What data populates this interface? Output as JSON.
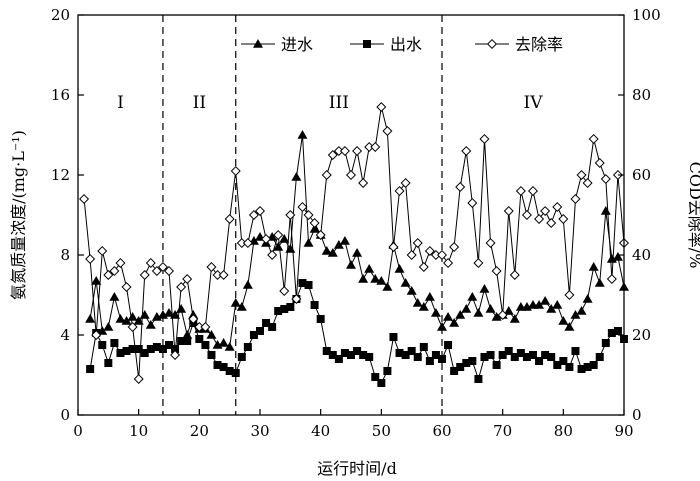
{
  "chart_data": {
    "type": "line",
    "xlabel": "运行时间/d",
    "ylabel": "氨氮质量浓度/(mg·L⁻¹)",
    "y2label": "COD去除率/%",
    "xlim": [
      0,
      90
    ],
    "ylim": [
      0,
      20
    ],
    "y2lim": [
      0,
      100
    ],
    "xticks": [
      0,
      10,
      20,
      30,
      40,
      50,
      60,
      70,
      80,
      90
    ],
    "yticks": [
      0,
      4,
      8,
      12,
      16,
      20
    ],
    "y2ticks": [
      0,
      20,
      40,
      60,
      80,
      100
    ],
    "grid": false,
    "legend": "top",
    "phase_boundaries": [
      14,
      26,
      60
    ],
    "phases": [
      {
        "label": "I",
        "x": 7
      },
      {
        "label": "II",
        "x": 20
      },
      {
        "label": "III",
        "x": 43
      },
      {
        "label": "IV",
        "x": 75
      }
    ],
    "series": [
      {
        "name": "进水",
        "axis": "left",
        "color": "#000000",
        "marker": "triangle",
        "x": [
          2,
          3,
          4,
          5,
          6,
          7,
          8,
          9,
          10,
          11,
          12,
          13,
          14,
          15,
          16,
          17,
          18,
          19,
          20,
          21,
          22,
          23,
          24,
          25,
          26,
          27,
          28,
          29,
          30,
          31,
          32,
          33,
          34,
          35,
          36,
          37,
          38,
          39,
          40,
          41,
          42,
          43,
          44,
          45,
          46,
          47,
          48,
          49,
          50,
          51,
          52,
          53,
          54,
          55,
          56,
          57,
          58,
          59,
          60,
          61,
          62,
          63,
          64,
          65,
          66,
          67,
          68,
          69,
          70,
          71,
          72,
          73,
          74,
          75,
          76,
          77,
          78,
          79,
          80,
          81,
          82,
          83,
          84,
          85,
          86,
          87,
          88,
          89,
          90
        ],
        "values": [
          4.8,
          6.7,
          4.2,
          4.4,
          5.9,
          4.8,
          4.7,
          4.9,
          4.7,
          5.0,
          4.5,
          4.9,
          5.0,
          5.1,
          5.0,
          5.3,
          4.0,
          5.0,
          4.3,
          4.3,
          4.0,
          3.5,
          3.6,
          3.4,
          5.6,
          5.4,
          6.5,
          8.7,
          8.9,
          8.6,
          8.9,
          8.4,
          8.8,
          8.3,
          11.9,
          14.0,
          8.6,
          9.3,
          9.0,
          8.2,
          8.1,
          8.5,
          8.7,
          7.5,
          8.1,
          6.8,
          7.3,
          6.8,
          6.7,
          6.4,
          8.5,
          7.3,
          6.6,
          6.2,
          5.6,
          5.4,
          5.9,
          5.1,
          4.4,
          4.9,
          4.6,
          5.0,
          5.3,
          5.9,
          5.1,
          6.3,
          5.3,
          4.9,
          5.0,
          5.2,
          4.8,
          5.4,
          5.4,
          5.5,
          5.5,
          5.7,
          5.3,
          5.5,
          4.7,
          4.4,
          5.0,
          5.2,
          5.8,
          7.4,
          6.6,
          10.2,
          7.8,
          7.9,
          6.4
        ]
      },
      {
        "name": "出水",
        "axis": "left",
        "color": "#000000",
        "marker": "square",
        "x": [
          2,
          3,
          4,
          5,
          6,
          7,
          8,
          9,
          10,
          11,
          12,
          13,
          14,
          15,
          16,
          17,
          18,
          19,
          20,
          21,
          22,
          23,
          24,
          25,
          26,
          27,
          28,
          29,
          30,
          31,
          32,
          33,
          34,
          35,
          36,
          37,
          38,
          39,
          40,
          41,
          42,
          43,
          44,
          45,
          46,
          47,
          48,
          49,
          50,
          51,
          52,
          53,
          54,
          55,
          56,
          57,
          58,
          59,
          60,
          61,
          62,
          63,
          64,
          65,
          66,
          67,
          68,
          69,
          70,
          71,
          72,
          73,
          74,
          75,
          76,
          77,
          78,
          79,
          80,
          81,
          82,
          83,
          84,
          85,
          86,
          87,
          88,
          89,
          90
        ],
        "values": [
          2.3,
          4.1,
          3.5,
          2.6,
          3.6,
          3.1,
          3.2,
          3.3,
          3.3,
          3.1,
          3.3,
          3.4,
          3.3,
          3.5,
          3.3,
          3.7,
          3.7,
          4.6,
          3.8,
          3.5,
          3.0,
          2.5,
          2.4,
          2.2,
          2.1,
          2.9,
          3.4,
          4.0,
          4.2,
          4.6,
          4.4,
          5.2,
          5.3,
          5.4,
          5.8,
          6.6,
          6.5,
          5.5,
          4.8,
          3.2,
          3.0,
          2.8,
          3.1,
          3.0,
          3.2,
          3.0,
          2.9,
          1.9,
          1.6,
          2.2,
          3.9,
          3.1,
          3.0,
          3.2,
          2.9,
          3.4,
          2.7,
          3.0,
          2.8,
          3.5,
          2.2,
          2.4,
          2.6,
          2.7,
          1.8,
          2.9,
          3.0,
          2.5,
          3.0,
          3.2,
          2.9,
          3.1,
          2.9,
          3.0,
          2.7,
          3.0,
          2.9,
          2.5,
          2.7,
          2.4,
          3.2,
          2.3,
          2.4,
          2.5,
          2.9,
          3.6,
          4.1,
          4.2,
          3.8
        ]
      },
      {
        "name": "去除率",
        "axis": "right",
        "color": "#000000",
        "marker": "diamond-open",
        "x": [
          1,
          2,
          3,
          4,
          5,
          6,
          7,
          8,
          9,
          10,
          11,
          12,
          13,
          14,
          15,
          16,
          17,
          18,
          19,
          20,
          21,
          22,
          23,
          24,
          25,
          26,
          27,
          28,
          29,
          30,
          31,
          32,
          33,
          34,
          35,
          36,
          37,
          38,
          39,
          40,
          41,
          42,
          43,
          44,
          45,
          46,
          47,
          48,
          49,
          50,
          51,
          52,
          53,
          54,
          55,
          56,
          57,
          58,
          59,
          60,
          61,
          62,
          63,
          64,
          65,
          66,
          67,
          68,
          69,
          70,
          71,
          72,
          73,
          74,
          75,
          76,
          77,
          78,
          79,
          80,
          81,
          82,
          83,
          84,
          85,
          86,
          87,
          88,
          89,
          90
        ],
        "values": [
          54,
          39,
          20,
          41,
          35,
          36,
          38,
          32,
          22,
          9,
          35,
          38,
          36,
          37,
          36,
          15,
          32,
          34,
          24,
          22,
          22,
          37,
          35,
          35,
          49,
          61,
          43,
          43,
          50,
          51,
          44,
          40,
          45,
          31,
          50,
          29,
          52,
          50,
          48,
          45,
          60,
          65,
          66,
          66,
          60,
          66,
          58,
          67,
          67,
          77,
          71,
          42,
          56,
          58,
          40,
          43,
          37,
          41,
          40,
          40,
          38,
          42,
          57,
          66,
          53,
          38,
          69,
          43,
          36,
          25,
          51,
          35,
          56,
          50,
          56,
          49,
          51,
          48,
          52,
          49,
          30,
          54,
          60,
          58,
          69,
          63,
          59,
          34,
          60,
          43
        ]
      }
    ]
  }
}
